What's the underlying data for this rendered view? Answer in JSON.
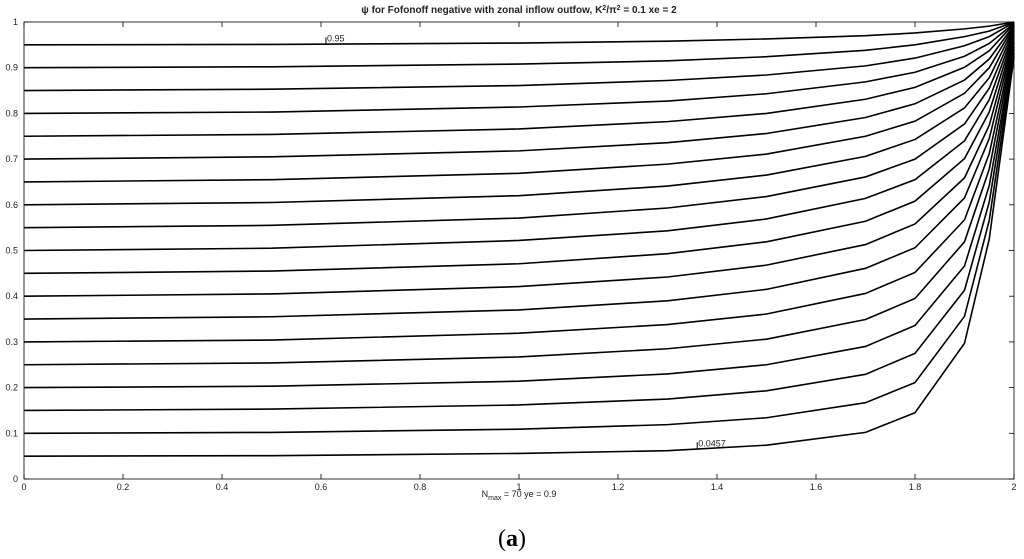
{
  "chart_data": {
    "type": "contour",
    "title_parts": [
      "ψ for Fofonoff negative with zonal inflow outfow, K",
      "2",
      "/π",
      "2",
      " = 0.1 xe = 2"
    ],
    "xlabel_parts": [
      "N",
      "max",
      " = 70  ye = 0.9"
    ],
    "caption_parts": [
      "(",
      "a",
      ")"
    ],
    "xlim": [
      0,
      2
    ],
    "ylim": [
      0,
      1
    ],
    "xticks": [
      0,
      0.2,
      0.4,
      0.6,
      0.8,
      1,
      1.2,
      1.4,
      1.6,
      1.8,
      2
    ],
    "yticks": [
      0,
      0.1,
      0.2,
      0.3,
      0.4,
      0.5,
      0.6,
      0.7,
      0.8,
      0.9,
      1
    ],
    "color": "#000000",
    "x": [
      0,
      0.5,
      1,
      1.3,
      1.5,
      1.7,
      1.8,
      1.9,
      1.95,
      2
    ],
    "lines": [
      {
        "values": [
          0.05,
          0.051,
          0.056,
          0.062,
          0.074,
          0.102,
          0.145,
          0.297,
          0.525,
          0.924
        ]
      },
      {
        "values": [
          0.1,
          0.102,
          0.109,
          0.119,
          0.134,
          0.167,
          0.211,
          0.356,
          0.566,
          0.932
        ]
      },
      {
        "values": [
          0.15,
          0.153,
          0.162,
          0.175,
          0.193,
          0.229,
          0.275,
          0.413,
          0.606,
          0.94
        ]
      },
      {
        "values": [
          0.2,
          0.203,
          0.214,
          0.23,
          0.25,
          0.29,
          0.336,
          0.466,
          0.642,
          0.946
        ]
      },
      {
        "values": [
          0.25,
          0.254,
          0.267,
          0.285,
          0.306,
          0.349,
          0.395,
          0.519,
          0.678,
          0.954
        ]
      },
      {
        "values": [
          0.3,
          0.304,
          0.319,
          0.338,
          0.361,
          0.406,
          0.452,
          0.567,
          0.712,
          0.959
        ]
      },
      {
        "values": [
          0.35,
          0.355,
          0.37,
          0.39,
          0.415,
          0.461,
          0.506,
          0.615,
          0.745,
          0.966
        ]
      },
      {
        "values": [
          0.4,
          0.405,
          0.421,
          0.442,
          0.468,
          0.513,
          0.558,
          0.659,
          0.774,
          0.971
        ]
      },
      {
        "values": [
          0.45,
          0.455,
          0.471,
          0.493,
          0.519,
          0.564,
          0.608,
          0.701,
          0.803,
          0.976
        ]
      },
      {
        "values": [
          0.5,
          0.505,
          0.522,
          0.543,
          0.569,
          0.614,
          0.655,
          0.74,
          0.83,
          0.98
        ]
      },
      {
        "values": [
          0.55,
          0.555,
          0.571,
          0.593,
          0.618,
          0.661,
          0.7,
          0.777,
          0.855,
          0.984
        ]
      },
      {
        "values": [
          0.6,
          0.605,
          0.62,
          0.641,
          0.665,
          0.706,
          0.743,
          0.812,
          0.878,
          0.988
        ]
      },
      {
        "values": [
          0.65,
          0.655,
          0.669,
          0.689,
          0.711,
          0.75,
          0.783,
          0.844,
          0.9,
          0.991
        ]
      },
      {
        "values": [
          0.7,
          0.705,
          0.718,
          0.736,
          0.756,
          0.791,
          0.821,
          0.873,
          0.919,
          0.993
        ]
      },
      {
        "values": [
          0.75,
          0.754,
          0.766,
          0.782,
          0.8,
          0.831,
          0.857,
          0.901,
          0.937,
          0.996
        ]
      },
      {
        "values": [
          0.8,
          0.803,
          0.814,
          0.827,
          0.843,
          0.869,
          0.89,
          0.925,
          0.953,
          0.997
        ]
      },
      {
        "values": [
          0.85,
          0.853,
          0.861,
          0.872,
          0.884,
          0.904,
          0.921,
          0.948,
          0.968,
          0.999
        ]
      },
      {
        "values": [
          0.9,
          0.902,
          0.908,
          0.915,
          0.924,
          0.938,
          0.95,
          0.968,
          0.98,
          1.0
        ]
      },
      {
        "values": [
          0.95,
          0.951,
          0.954,
          0.958,
          0.963,
          0.97,
          0.976,
          0.985,
          0.991,
          1
        ]
      }
    ],
    "contour_labels": [
      {
        "value": 0.95,
        "x": 0.61,
        "y": 0.951
      },
      {
        "value": 0.0457,
        "x": 1.36,
        "y": 0.065
      }
    ]
  }
}
